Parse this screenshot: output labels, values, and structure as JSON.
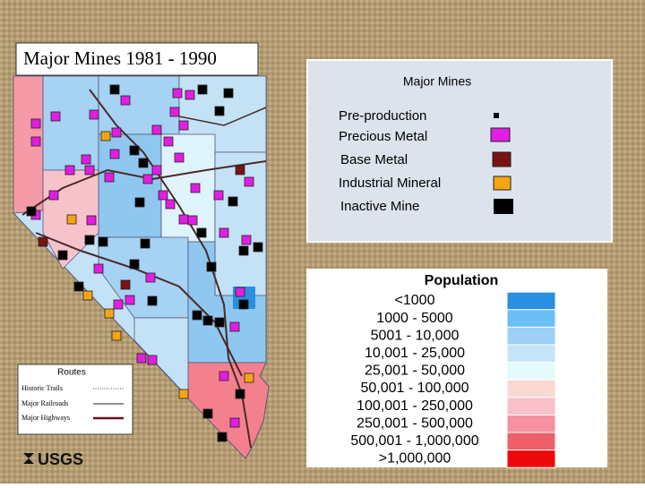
{
  "title": "Major Mines 1981 - 1990",
  "mine_legend": {
    "title": "Major Mines",
    "items": [
      "Pre-production",
      "Precious Metal",
      "Base Metal",
      "Industrial Mineral",
      "Inactive Mine"
    ]
  },
  "population_legend": {
    "title": "Population",
    "items": [
      "<1000",
      "1000 - 5000",
      "5001 - 10,000",
      "10,001 - 25,000",
      "25,001 - 50,000",
      "50,001 - 100,000",
      "100,001 - 250,000",
      "250,001 - 500,000",
      "500,001 - 1,000,000",
      ">1,000,000"
    ]
  },
  "routes_legend": {
    "title": "Routes",
    "items": [
      "Historic Trails",
      "Major Railroads",
      "Major Highways"
    ]
  },
  "logo": "USGS"
}
